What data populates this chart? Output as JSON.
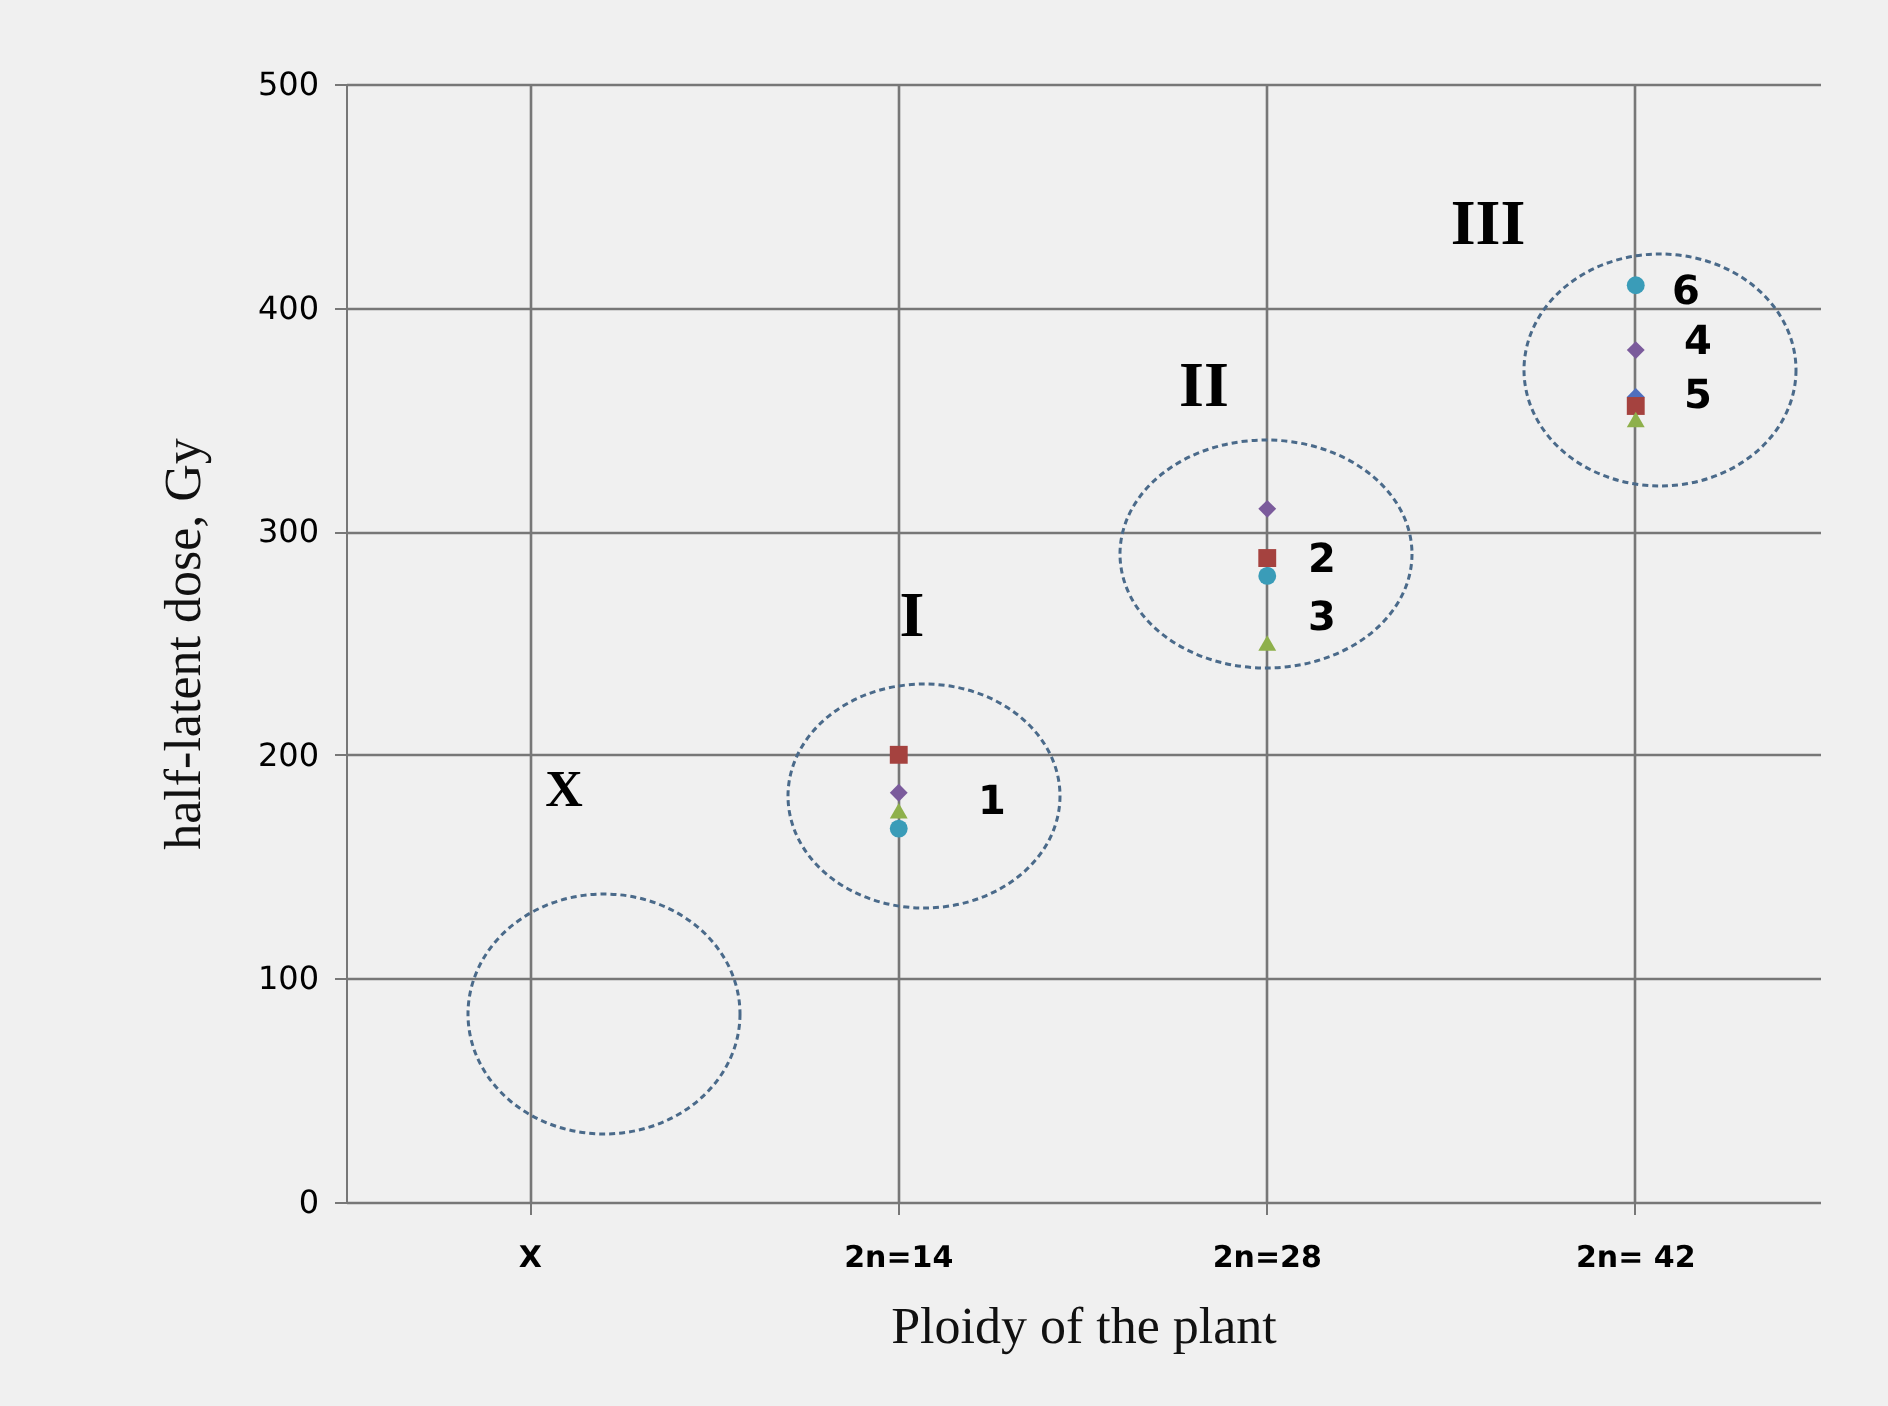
{
  "chart_data": {
    "type": "scatter",
    "xlabel": "Ploidy of the plant",
    "ylabel": "half-latent dose, Gy",
    "categories": [
      "X",
      "2n=14",
      "2n=28",
      "2n= 42"
    ],
    "series": [
      {
        "color": "#4f6fbf",
        "marker": "diamond",
        "values": [
          null,
          null,
          null,
          360
        ]
      },
      {
        "color": "#a5423f",
        "marker": "square",
        "values": [
          null,
          200,
          288,
          356
        ]
      },
      {
        "color": "#8eb04b",
        "marker": "triangle",
        "values": [
          null,
          175,
          250,
          350
        ]
      },
      {
        "color": "#7b5b9c",
        "marker": "diamond",
        "values": [
          null,
          183,
          310,
          381
        ]
      },
      {
        "color": "#3a9cb8",
        "marker": "circle",
        "values": [
          null,
          167,
          280,
          410
        ]
      }
    ],
    "ylim": [
      0,
      500
    ],
    "yticks": [
      0,
      100,
      200,
      300,
      400,
      500
    ],
    "grid": true,
    "annotations": [
      "X",
      "I",
      "II",
      "III",
      "1",
      "2",
      "3",
      "6",
      "4",
      "5"
    ]
  }
}
